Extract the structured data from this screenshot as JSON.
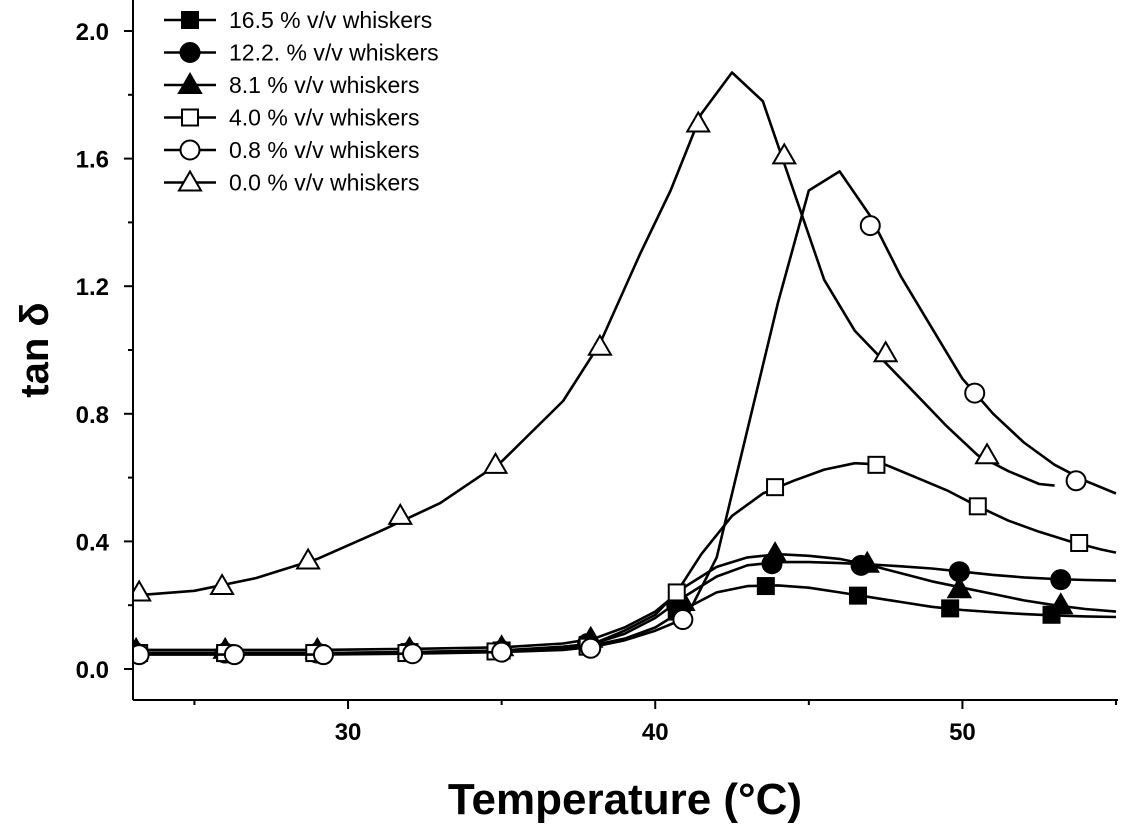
{
  "chart_data": {
    "type": "line",
    "title": "",
    "xlabel": "Temperature (°C)",
    "ylabel": "tan δ",
    "xlim": [
      23,
      55
    ],
    "ylim": [
      -0.1,
      2.1
    ],
    "x_ticks": [
      30,
      40,
      50
    ],
    "y_ticks": [
      0.0,
      0.4,
      0.8,
      1.2,
      1.6,
      2.0
    ],
    "x_tick_labels": [
      "30",
      "40",
      "50"
    ],
    "y_tick_labels": [
      "0.0",
      "0.4",
      "0.8",
      "1.2",
      "1.6",
      "2.0"
    ],
    "grid": false,
    "legend_position": "top-left",
    "series": [
      {
        "name": "16.5 % v/v whiskers",
        "marker": "filled-square",
        "line_points": [
          [
            23,
            0.05
          ],
          [
            26,
            0.05
          ],
          [
            29,
            0.05
          ],
          [
            32,
            0.053
          ],
          [
            35,
            0.058
          ],
          [
            37,
            0.065
          ],
          [
            38,
            0.075
          ],
          [
            39,
            0.095
          ],
          [
            40,
            0.13
          ],
          [
            41,
            0.19
          ],
          [
            42,
            0.24
          ],
          [
            43,
            0.26
          ],
          [
            44,
            0.262
          ],
          [
            45,
            0.255
          ],
          [
            46,
            0.24
          ],
          [
            47,
            0.225
          ],
          [
            48,
            0.21
          ],
          [
            49,
            0.195
          ],
          [
            50,
            0.185
          ],
          [
            51,
            0.178
          ],
          [
            52,
            0.172
          ],
          [
            53,
            0.168
          ],
          [
            54,
            0.165
          ],
          [
            55,
            0.163
          ]
        ],
        "marker_points": [
          [
            23.1,
            0.05
          ],
          [
            26,
            0.05
          ],
          [
            29,
            0.05
          ],
          [
            32,
            0.053
          ],
          [
            35,
            0.058
          ],
          [
            37.8,
            0.075
          ],
          [
            40.7,
            0.18
          ],
          [
            43.6,
            0.26
          ],
          [
            46.6,
            0.23
          ],
          [
            49.6,
            0.19
          ],
          [
            52.9,
            0.17
          ]
        ]
      },
      {
        "name": "12.2. % v/v whiskers",
        "marker": "filled-circle",
        "line_points": [
          [
            23,
            0.05
          ],
          [
            26,
            0.05
          ],
          [
            29,
            0.05
          ],
          [
            32,
            0.053
          ],
          [
            35,
            0.058
          ],
          [
            37,
            0.07
          ],
          [
            38,
            0.08
          ],
          [
            39,
            0.11
          ],
          [
            40,
            0.16
          ],
          [
            41,
            0.23
          ],
          [
            42,
            0.29
          ],
          [
            43,
            0.325
          ],
          [
            44,
            0.335
          ],
          [
            45,
            0.335
          ],
          [
            46,
            0.332
          ],
          [
            47,
            0.328
          ],
          [
            48,
            0.322
          ],
          [
            49,
            0.315
          ],
          [
            50,
            0.305
          ],
          [
            51,
            0.295
          ],
          [
            52,
            0.287
          ],
          [
            53,
            0.282
          ],
          [
            54,
            0.279
          ],
          [
            55,
            0.277
          ]
        ],
        "marker_points": [
          [
            23.1,
            0.05
          ],
          [
            26,
            0.05
          ],
          [
            29,
            0.05
          ],
          [
            32,
            0.053
          ],
          [
            35,
            0.058
          ],
          [
            37.8,
            0.08
          ],
          [
            40.7,
            0.2
          ],
          [
            43.8,
            0.33
          ],
          [
            46.7,
            0.325
          ],
          [
            49.9,
            0.305
          ],
          [
            53.2,
            0.28
          ]
        ]
      },
      {
        "name": "8.1 % v/v whiskers",
        "marker": "filled-triangle",
        "line_points": [
          [
            23,
            0.06
          ],
          [
            26,
            0.06
          ],
          [
            29,
            0.06
          ],
          [
            32,
            0.063
          ],
          [
            35,
            0.068
          ],
          [
            37,
            0.08
          ],
          [
            38,
            0.095
          ],
          [
            39,
            0.13
          ],
          [
            40,
            0.18
          ],
          [
            41,
            0.26
          ],
          [
            42,
            0.32
          ],
          [
            43,
            0.35
          ],
          [
            44,
            0.36
          ],
          [
            45,
            0.355
          ],
          [
            46,
            0.345
          ],
          [
            47,
            0.325
          ],
          [
            48,
            0.3
          ],
          [
            49,
            0.275
          ],
          [
            50,
            0.255
          ],
          [
            51,
            0.235
          ],
          [
            52,
            0.215
          ],
          [
            53,
            0.2
          ],
          [
            54,
            0.188
          ],
          [
            55,
            0.18
          ]
        ],
        "marker_points": [
          [
            23.1,
            0.06
          ],
          [
            26,
            0.06
          ],
          [
            29,
            0.06
          ],
          [
            32,
            0.063
          ],
          [
            35,
            0.068
          ],
          [
            37.9,
            0.095
          ],
          [
            40.9,
            0.21
          ],
          [
            43.9,
            0.36
          ],
          [
            46.9,
            0.33
          ],
          [
            49.9,
            0.25
          ],
          [
            53.2,
            0.2
          ]
        ]
      },
      {
        "name": "4.0 % v/v whiskers",
        "marker": "open-square",
        "line_points": [
          [
            23,
            0.05
          ],
          [
            26,
            0.05
          ],
          [
            29,
            0.05
          ],
          [
            32,
            0.05
          ],
          [
            35,
            0.055
          ],
          [
            37,
            0.065
          ],
          [
            38,
            0.08
          ],
          [
            39,
            0.12
          ],
          [
            40,
            0.17
          ],
          [
            40.7,
            0.24
          ],
          [
            41.5,
            0.36
          ],
          [
            42.5,
            0.48
          ],
          [
            43.5,
            0.55
          ],
          [
            44.5,
            0.59
          ],
          [
            45.5,
            0.625
          ],
          [
            46.5,
            0.645
          ],
          [
            47.5,
            0.64
          ],
          [
            48.5,
            0.6
          ],
          [
            49.5,
            0.56
          ],
          [
            50.5,
            0.51
          ],
          [
            51.5,
            0.465
          ],
          [
            52.5,
            0.43
          ],
          [
            53.5,
            0.4
          ],
          [
            54.5,
            0.375
          ],
          [
            55,
            0.365
          ]
        ],
        "marker_points": [
          [
            23.2,
            0.05
          ],
          [
            26,
            0.05
          ],
          [
            28.9,
            0.05
          ],
          [
            31.9,
            0.05
          ],
          [
            34.8,
            0.055
          ],
          [
            37.8,
            0.07
          ],
          [
            40.7,
            0.24
          ],
          [
            43.9,
            0.57
          ],
          [
            47.2,
            0.64
          ],
          [
            50.5,
            0.51
          ],
          [
            53.8,
            0.395
          ]
        ]
      },
      {
        "name": "0.8 % v/v whiskers",
        "marker": "open-circle",
        "line_points": [
          [
            23,
            0.045
          ],
          [
            26,
            0.045
          ],
          [
            29,
            0.045
          ],
          [
            32,
            0.048
          ],
          [
            35,
            0.053
          ],
          [
            37,
            0.06
          ],
          [
            38,
            0.07
          ],
          [
            39,
            0.09
          ],
          [
            40,
            0.12
          ],
          [
            41,
            0.16
          ],
          [
            42,
            0.35
          ],
          [
            43,
            0.75
          ],
          [
            44,
            1.15
          ],
          [
            45,
            1.5
          ],
          [
            46,
            1.56
          ],
          [
            47,
            1.42
          ],
          [
            48,
            1.23
          ],
          [
            49,
            1.07
          ],
          [
            50,
            0.91
          ],
          [
            51,
            0.8
          ],
          [
            52,
            0.71
          ],
          [
            53,
            0.64
          ],
          [
            54,
            0.59
          ],
          [
            55,
            0.55
          ]
        ],
        "marker_points": [
          [
            23.2,
            0.045
          ],
          [
            26.3,
            0.045
          ],
          [
            29.2,
            0.045
          ],
          [
            32.1,
            0.048
          ],
          [
            35,
            0.053
          ],
          [
            37.9,
            0.065
          ],
          [
            40.9,
            0.155
          ],
          [
            47,
            1.39
          ],
          [
            50.4,
            0.865
          ],
          [
            53.7,
            0.59
          ]
        ]
      },
      {
        "name": "0.0 % v/v whiskers",
        "marker": "open-triangle",
        "line_points": [
          [
            23,
            0.23
          ],
          [
            25,
            0.245
          ],
          [
            27,
            0.285
          ],
          [
            29,
            0.345
          ],
          [
            31,
            0.43
          ],
          [
            33,
            0.52
          ],
          [
            35,
            0.65
          ],
          [
            37,
            0.84
          ],
          [
            38.2,
            1.02
          ],
          [
            39.5,
            1.3
          ],
          [
            40.5,
            1.5
          ],
          [
            41.5,
            1.74
          ],
          [
            42.5,
            1.87
          ],
          [
            43.5,
            1.78
          ],
          [
            44.5,
            1.5
          ],
          [
            45.5,
            1.22
          ],
          [
            46.5,
            1.06
          ],
          [
            47.5,
            0.96
          ],
          [
            48.5,
            0.86
          ],
          [
            49.5,
            0.76
          ],
          [
            50.5,
            0.67
          ],
          [
            51.5,
            0.62
          ],
          [
            52.5,
            0.58
          ],
          [
            53,
            0.575
          ]
        ],
        "marker_points": [
          [
            23.2,
            0.24
          ],
          [
            25.9,
            0.26
          ],
          [
            28.7,
            0.34
          ],
          [
            31.7,
            0.48
          ],
          [
            34.8,
            0.64
          ],
          [
            38.2,
            1.01
          ],
          [
            41.4,
            1.71
          ],
          [
            44.2,
            1.61
          ],
          [
            47.5,
            0.99
          ],
          [
            50.8,
            0.67
          ]
        ]
      }
    ]
  }
}
